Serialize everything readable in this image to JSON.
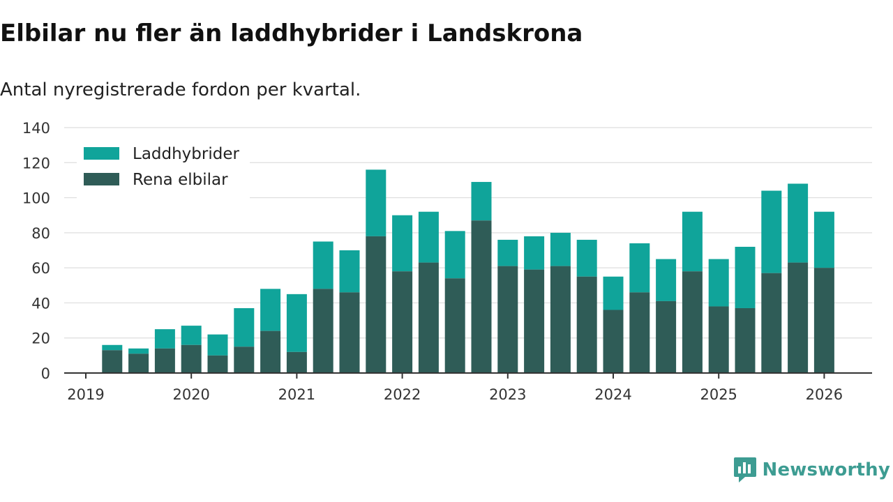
{
  "header": {
    "title": "Elbilar nu fler än laddhybrider i Landskrona",
    "subtitle": "Antal nyregistrerade fordon per kvartal."
  },
  "brand": {
    "name": "Newsworthy",
    "icon": "newsworthy-logo-icon",
    "color": "#3d9c92"
  },
  "colors": {
    "laddhybrider": "#10a49a",
    "rena_elbilar": "#2f5c57",
    "grid": "#dddddd",
    "axis": "#333333"
  },
  "chart_data": {
    "type": "bar",
    "stacked": true,
    "title": "Elbilar nu fler än laddhybrider i Landskrona",
    "subtitle": "Antal nyregistrerade fordon per kvartal.",
    "xlabel": "",
    "ylabel": "",
    "ylim": [
      0,
      140
    ],
    "yticks": [
      0,
      20,
      40,
      60,
      80,
      100,
      120,
      140
    ],
    "xticks": [
      "2019",
      "2020",
      "2021",
      "2022",
      "2023",
      "2024",
      "2025",
      "2026"
    ],
    "x_start": 2019,
    "grid": true,
    "legend_position": "top-left",
    "categories": [
      "2019 Q2",
      "2019 Q3",
      "2019 Q4",
      "2020 Q1",
      "2020 Q2",
      "2020 Q3",
      "2020 Q4",
      "2021 Q1",
      "2021 Q2",
      "2021 Q3",
      "2021 Q4",
      "2022 Q1",
      "2022 Q2",
      "2022 Q3",
      "2022 Q4",
      "2023 Q1",
      "2023 Q2",
      "2023 Q3",
      "2023 Q4",
      "2024 Q1",
      "2024 Q2",
      "2024 Q3",
      "2024 Q4",
      "2025 Q1",
      "2025 Q2",
      "2025 Q3",
      "2025 Q4",
      "2026 Q1"
    ],
    "series": [
      {
        "name": "Rena elbilar",
        "color": "#2f5c57",
        "values": [
          13,
          11,
          14,
          16,
          10,
          15,
          24,
          12,
          48,
          46,
          78,
          58,
          63,
          54,
          87,
          61,
          59,
          61,
          55,
          36,
          46,
          41,
          58,
          38,
          37,
          57,
          63,
          60
        ]
      },
      {
        "name": "Laddhybrider",
        "color": "#10a49a",
        "values": [
          3,
          3,
          11,
          11,
          12,
          22,
          24,
          33,
          27,
          24,
          38,
          32,
          29,
          27,
          22,
          15,
          19,
          19,
          21,
          19,
          28,
          24,
          34,
          27,
          35,
          47,
          45,
          32
        ]
      }
    ],
    "legend": [
      {
        "name": "Laddhybrider",
        "color": "#10a49a"
      },
      {
        "name": "Rena elbilar",
        "color": "#2f5c57"
      }
    ]
  }
}
